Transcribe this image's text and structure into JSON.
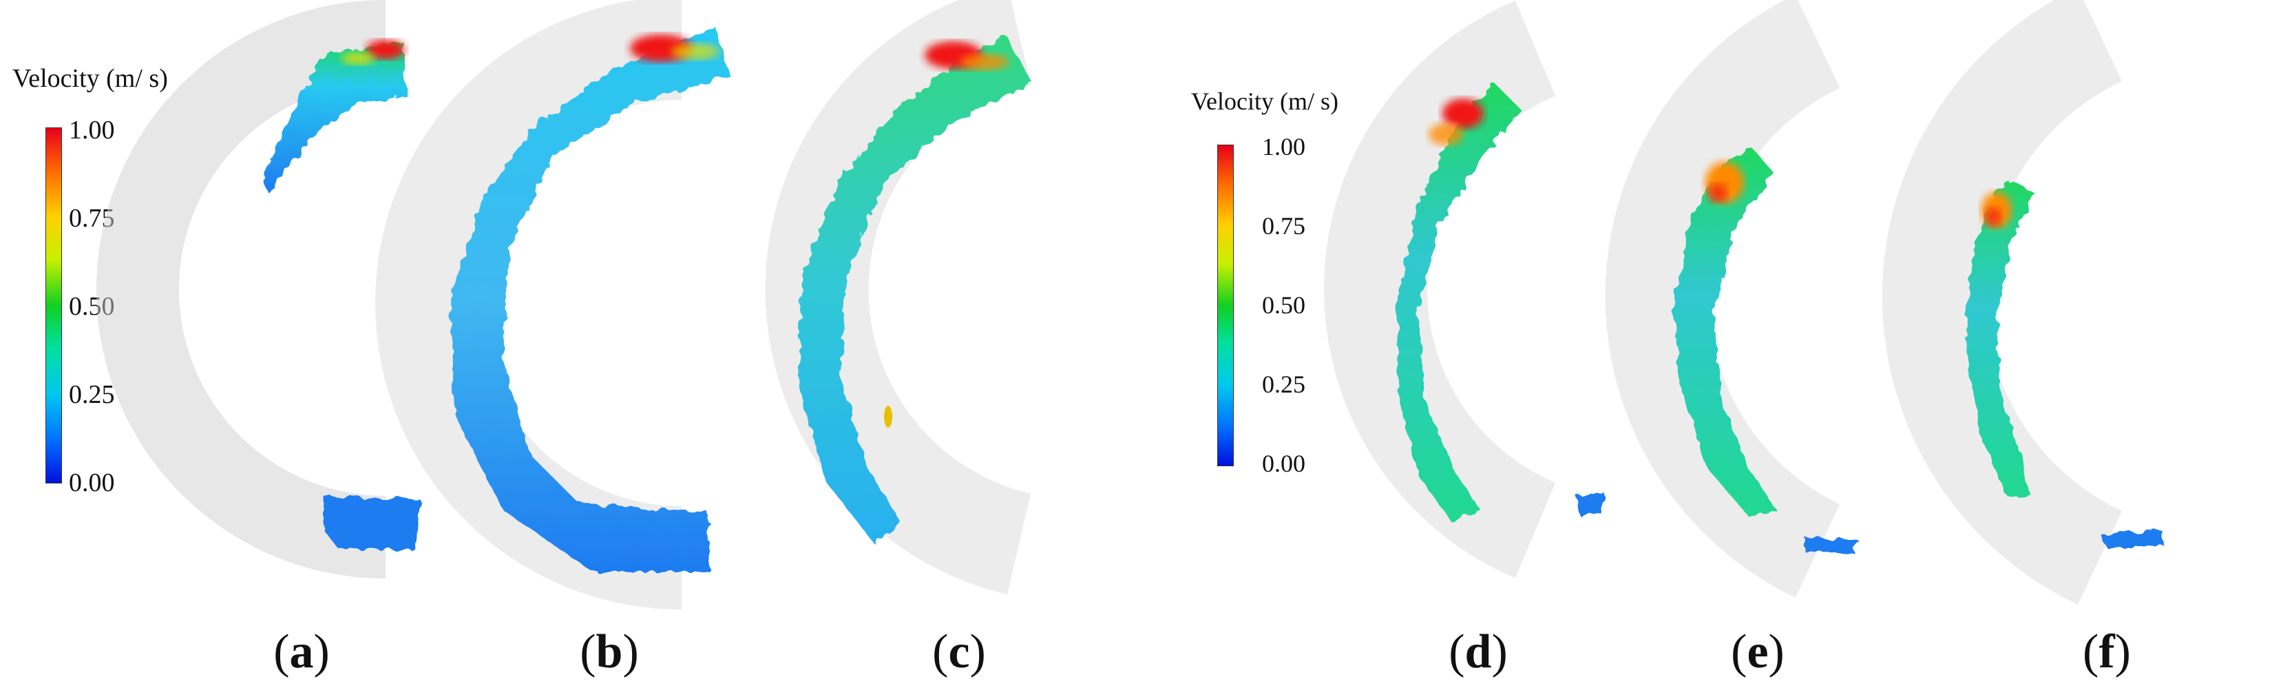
{
  "legend_left": {
    "title": "Velocity (m/ s)",
    "ticks": [
      "1.00",
      "0.75",
      "0.50",
      "0.25",
      "0.00"
    ]
  },
  "legend_right": {
    "title": "Velocity (m/ s)",
    "ticks": [
      "1.00",
      "0.75",
      "0.50",
      "0.25",
      "0.00"
    ]
  },
  "panels": [
    {
      "letter": "a"
    },
    {
      "letter": "b"
    },
    {
      "letter": "c"
    },
    {
      "letter": "d"
    },
    {
      "letter": "e"
    },
    {
      "letter": "f"
    }
  ],
  "colors": {
    "gray_mesh": "#cfcfcf",
    "blue": "#1e7cf0",
    "cyan": "#28c8f0",
    "green": "#20d860",
    "yellow": "#e8e000",
    "orange": "#ff8a00",
    "red": "#f01818"
  }
}
